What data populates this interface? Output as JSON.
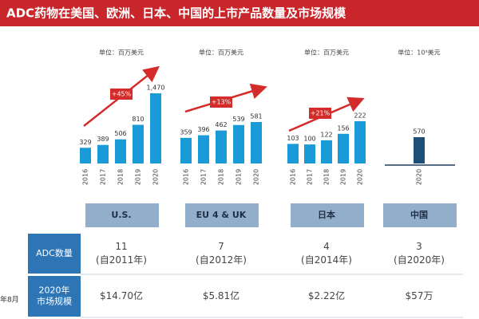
{
  "title": "ADC药物在美国、欧洲、日本、中国的上市产品数量及市场规模",
  "side_note": "年8月",
  "chart_data": [
    {
      "type": "bar",
      "unit": "单位：百万美元",
      "region": "U.S.",
      "growth": "+45%",
      "color": "#1a9ad6",
      "categories": [
        "2016",
        "2017",
        "2018",
        "2019",
        "2020"
      ],
      "values": [
        329,
        389,
        506,
        810,
        1470
      ],
      "value_labels": [
        "329",
        "389",
        "506",
        "810",
        "1,470"
      ],
      "ylim": [
        0,
        1670
      ]
    },
    {
      "type": "bar",
      "unit": "单位：百万美元",
      "region": "EU 4 & UK",
      "growth": "+13%",
      "color": "#1a9ad6",
      "categories": [
        "2016",
        "2017",
        "2018",
        "2019",
        "2020"
      ],
      "values": [
        359,
        396,
        462,
        539,
        581
      ],
      "ylim": [
        0,
        1117
      ]
    },
    {
      "type": "bar",
      "unit": "单位：百万美元",
      "region": "日本",
      "growth": "+21%",
      "color": "#1a9ad6",
      "categories": [
        "2016",
        "2017",
        "2018",
        "2019",
        "2020"
      ],
      "values": [
        103,
        100,
        122,
        156,
        222
      ],
      "ylim": [
        0,
        419
      ]
    },
    {
      "type": "bar",
      "unit": "单位：10³美元",
      "region": "中国",
      "color": "#1f4e79",
      "categories": [
        "2020"
      ],
      "values": [
        570
      ],
      "ylim": [
        0,
        1727
      ]
    }
  ],
  "table": {
    "rows": [
      {
        "header": [
          "ADC数量"
        ],
        "cells": [
          [
            "11",
            "(自2011年)"
          ],
          [
            "7",
            "(自2012年)"
          ],
          [
            "4",
            "(自2014年)"
          ],
          [
            "3",
            "(自2020年)"
          ]
        ]
      },
      {
        "header": [
          "2020年",
          "市场规模"
        ],
        "cells": [
          [
            "$14.70亿"
          ],
          [
            "$5.81亿"
          ],
          [
            "$2.22亿"
          ],
          [
            "$57万"
          ]
        ]
      }
    ]
  }
}
